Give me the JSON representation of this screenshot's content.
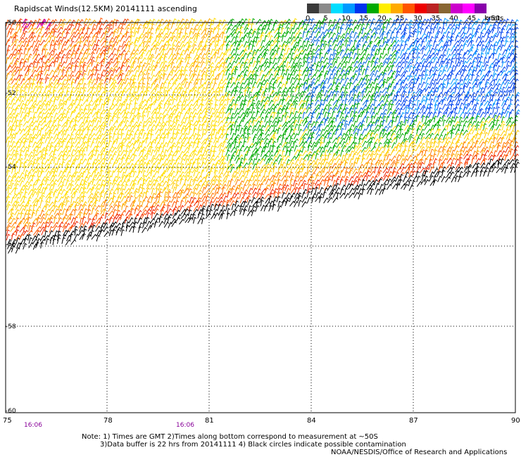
{
  "title": "Rapidscat Winds(12.5KM) 20141111 ascending",
  "legend": {
    "colors": [
      "#3a3a3a",
      "#8a8a8a",
      "#00ddff",
      "#0099ff",
      "#0033ee",
      "#00aa00",
      "#ffee00",
      "#ffaa00",
      "#ff5500",
      "#ee0000",
      "#bb2222",
      "#886633",
      "#cc00cc",
      "#ff00ff",
      "#8800aa"
    ],
    "tick_labels": [
      "0",
      "5",
      "10",
      "15",
      "20",
      "25",
      "30",
      "35",
      "40",
      "45",
      ">50"
    ],
    "units": "knots"
  },
  "lat_labels": [
    "-50",
    "-52",
    "-54",
    "-56",
    "-58",
    "-60"
  ],
  "lon_labels": [
    "75",
    "78",
    "81",
    "84",
    "87",
    "90"
  ],
  "time_labels": [
    "16:06",
    "16:06"
  ],
  "notes": {
    "line1": "Note: 1) Times are GMT 2)Times along bottom correspond to measurement at ~50S",
    "line2": "3)Data buffer is 22 hrs from 20141111 4) Black circles indicate possible contamination",
    "line3": "NOAA/NESDIS/Office of Research and Applications"
  }
}
